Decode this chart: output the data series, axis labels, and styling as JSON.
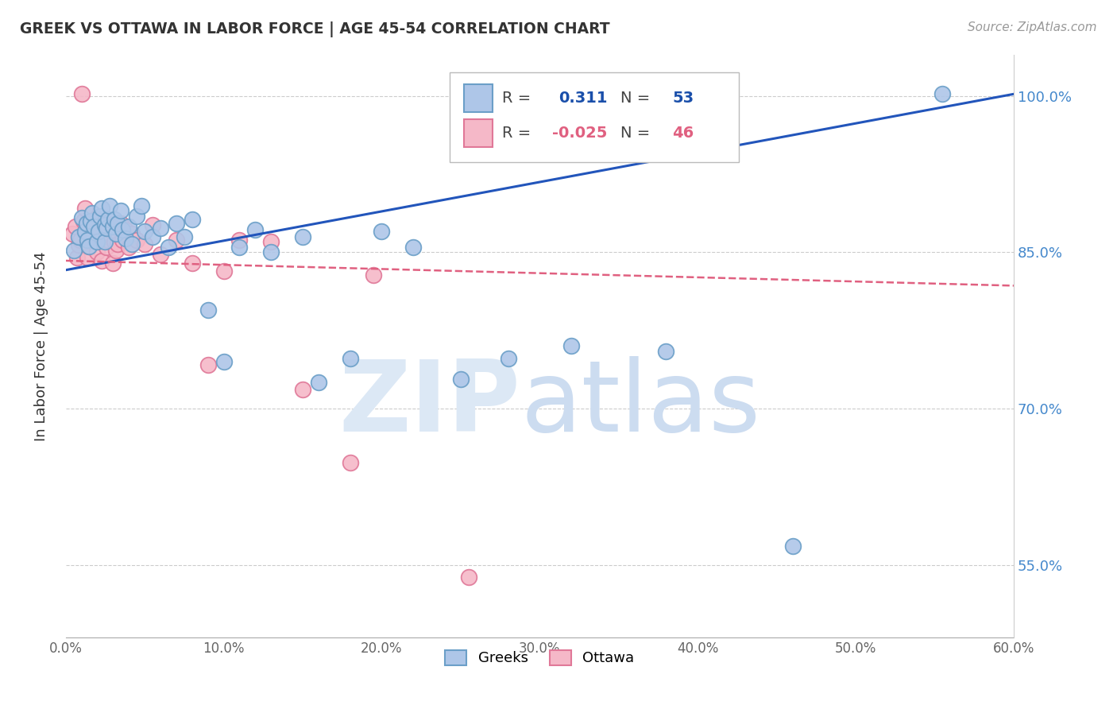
{
  "title": "GREEK VS OTTAWA IN LABOR FORCE | AGE 45-54 CORRELATION CHART",
  "source": "Source: ZipAtlas.com",
  "ylabel": "In Labor Force | Age 45-54",
  "xlim": [
    0.0,
    0.6
  ],
  "ylim": [
    0.48,
    1.04
  ],
  "xtick_labels": [
    "0.0%",
    "10.0%",
    "20.0%",
    "30.0%",
    "40.0%",
    "50.0%",
    "60.0%"
  ],
  "xtick_values": [
    0.0,
    0.1,
    0.2,
    0.3,
    0.4,
    0.5,
    0.6
  ],
  "ytick_labels": [
    "55.0%",
    "70.0%",
    "85.0%",
    "100.0%"
  ],
  "ytick_values": [
    0.55,
    0.7,
    0.85,
    1.0
  ],
  "r_greek": 0.311,
  "n_greek": 53,
  "r_ottawa": -0.025,
  "n_ottawa": 46,
  "greek_color": "#aec6e8",
  "greek_edge_color": "#6b9fc8",
  "ottawa_color": "#f5b8c8",
  "ottawa_edge_color": "#e07898",
  "line_greek_color": "#2255bb",
  "line_ottawa_color": "#e06080",
  "watermark_color": "#ccdcf0",
  "legend_r_color": "#1a4faa",
  "legend_n_color": "#1a4faa",
  "line_greek_x0": 0.0,
  "line_greek_y0": 0.833,
  "line_greek_x1": 0.6,
  "line_greek_y1": 1.002,
  "line_ottawa_x0": 0.0,
  "line_ottawa_y0": 0.842,
  "line_ottawa_x1": 0.6,
  "line_ottawa_y1": 0.818,
  "greek_x": [
    0.005,
    0.008,
    0.01,
    0.012,
    0.013,
    0.014,
    0.015,
    0.016,
    0.017,
    0.018,
    0.02,
    0.021,
    0.022,
    0.023,
    0.025,
    0.025,
    0.026,
    0.027,
    0.028,
    0.03,
    0.031,
    0.032,
    0.033,
    0.035,
    0.036,
    0.038,
    0.04,
    0.042,
    0.045,
    0.048,
    0.05,
    0.055,
    0.06,
    0.065,
    0.07,
    0.075,
    0.08,
    0.09,
    0.1,
    0.11,
    0.12,
    0.13,
    0.15,
    0.16,
    0.18,
    0.2,
    0.22,
    0.25,
    0.28,
    0.32,
    0.38,
    0.46,
    0.555
  ],
  "greek_y": [
    0.852,
    0.865,
    0.883,
    0.87,
    0.878,
    0.862,
    0.856,
    0.88,
    0.888,
    0.875,
    0.86,
    0.87,
    0.885,
    0.892,
    0.876,
    0.86,
    0.873,
    0.882,
    0.895,
    0.875,
    0.882,
    0.868,
    0.878,
    0.89,
    0.872,
    0.863,
    0.875,
    0.858,
    0.885,
    0.895,
    0.87,
    0.865,
    0.873,
    0.855,
    0.878,
    0.865,
    0.882,
    0.795,
    0.745,
    0.855,
    0.872,
    0.85,
    0.865,
    0.725,
    0.748,
    0.87,
    0.855,
    0.728,
    0.748,
    0.76,
    0.755,
    0.568,
    1.002
  ],
  "ottawa_x": [
    0.004,
    0.006,
    0.007,
    0.008,
    0.009,
    0.01,
    0.011,
    0.012,
    0.013,
    0.014,
    0.015,
    0.016,
    0.017,
    0.018,
    0.019,
    0.02,
    0.021,
    0.022,
    0.023,
    0.025,
    0.026,
    0.027,
    0.028,
    0.03,
    0.031,
    0.032,
    0.033,
    0.035,
    0.036,
    0.038,
    0.04,
    0.042,
    0.045,
    0.05,
    0.055,
    0.06,
    0.07,
    0.08,
    0.09,
    0.1,
    0.11,
    0.13,
    0.15,
    0.18,
    0.195,
    0.255
  ],
  "ottawa_y": [
    0.868,
    0.875,
    0.845,
    0.857,
    0.862,
    1.002,
    0.88,
    0.892,
    0.875,
    0.845,
    0.856,
    0.872,
    0.865,
    0.878,
    0.882,
    0.85,
    0.862,
    0.878,
    0.842,
    0.87,
    0.855,
    0.862,
    0.878,
    0.84,
    0.86,
    0.852,
    0.858,
    0.878,
    0.862,
    0.872,
    0.855,
    0.868,
    0.862,
    0.858,
    0.876,
    0.848,
    0.862,
    0.84,
    0.742,
    0.832,
    0.862,
    0.86,
    0.718,
    0.648,
    0.828,
    0.538
  ]
}
